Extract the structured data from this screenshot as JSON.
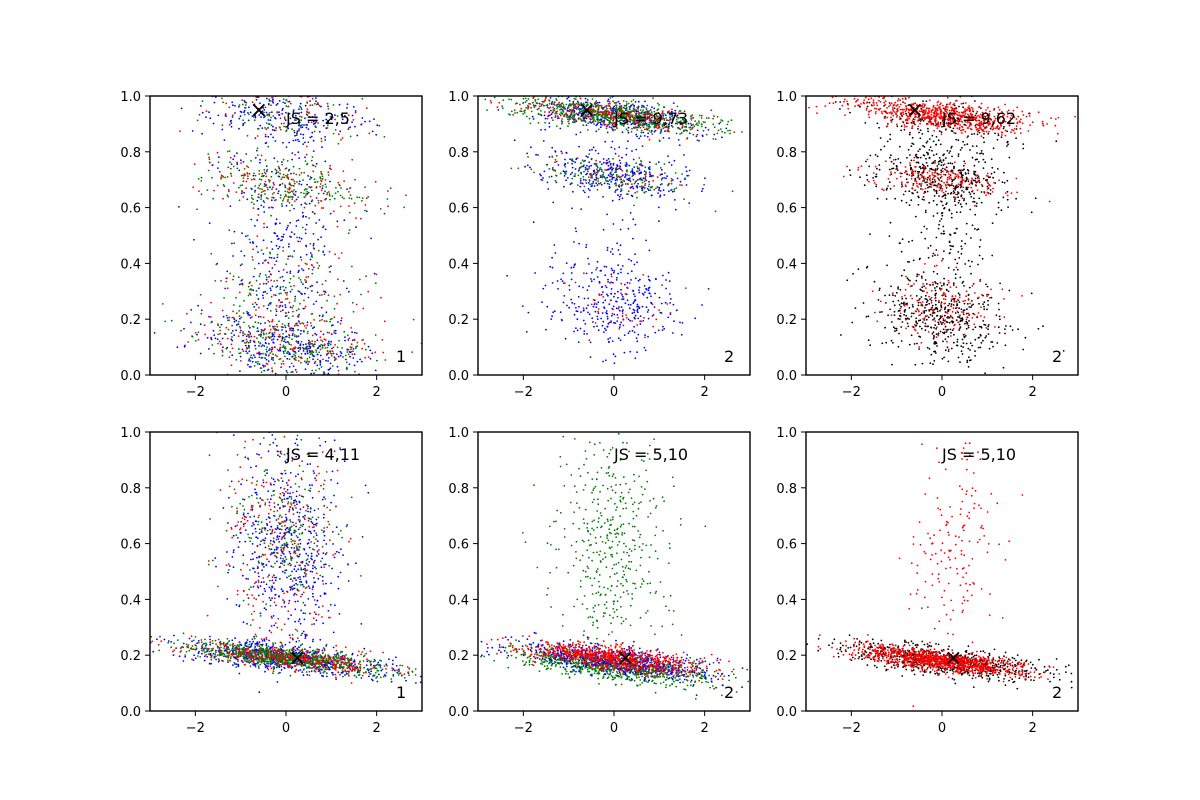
{
  "chart_data": [
    {
      "type": "scatter",
      "panel": "1",
      "x_range": [
        -3,
        3
      ],
      "ylim": [
        0,
        1
      ],
      "xticks": [
        "−2",
        "0",
        "2"
      ],
      "yticks": [
        "0.0",
        "0.2",
        "0.4",
        "0.6",
        "0.8",
        "1.0"
      ],
      "label_text": "JS = 2,5",
      "corner_number": "1",
      "marker": {
        "x": -0.6,
        "y": 0.95,
        "symbol": "×"
      },
      "series": [
        {
          "name": "blue",
          "color": "#0000ff",
          "count": 900,
          "clusters": [
            {
              "cx": 0.0,
              "cy": 0.1,
              "sx": 1.0,
              "sy": 0.06,
              "w": 0.3
            },
            {
              "cx": 0.0,
              "cy": 0.5,
              "sx": 0.7,
              "sy": 0.3,
              "w": 0.45
            },
            {
              "cx": 0.0,
              "cy": 0.93,
              "sx": 0.9,
              "sy": 0.05,
              "w": 0.25
            }
          ]
        },
        {
          "name": "green",
          "color": "#007f00",
          "count": 700,
          "clusters": [
            {
              "cx": 0.0,
              "cy": 0.1,
              "sx": 1.0,
              "sy": 0.05,
              "w": 0.35
            },
            {
              "cx": 0.0,
              "cy": 0.68,
              "sx": 0.9,
              "sy": 0.05,
              "w": 0.3
            },
            {
              "cx": 0.0,
              "cy": 0.3,
              "sx": 0.8,
              "sy": 0.1,
              "w": 0.2
            },
            {
              "cx": 0.0,
              "cy": 0.93,
              "sx": 0.9,
              "sy": 0.05,
              "w": 0.15
            }
          ]
        },
        {
          "name": "red",
          "color": "#ff0000",
          "count": 450,
          "clusters": [
            {
              "cx": 0.0,
              "cy": 0.12,
              "sx": 1.0,
              "sy": 0.06,
              "w": 0.35
            },
            {
              "cx": 0.0,
              "cy": 0.68,
              "sx": 0.9,
              "sy": 0.05,
              "w": 0.3
            },
            {
              "cx": 0.0,
              "cy": 0.3,
              "sx": 0.9,
              "sy": 0.1,
              "w": 0.2
            },
            {
              "cx": 0.0,
              "cy": 0.93,
              "sx": 0.9,
              "sy": 0.05,
              "w": 0.15
            }
          ]
        }
      ]
    },
    {
      "type": "scatter",
      "panel": "2",
      "x_range": [
        -3,
        3
      ],
      "ylim": [
        0,
        1
      ],
      "xticks": [
        "−2",
        "0",
        "2"
      ],
      "yticks": [
        "0.0",
        "0.2",
        "0.4",
        "0.6",
        "0.8",
        "1.0"
      ],
      "label_text": "JS = 9,73",
      "corner_number": "2",
      "marker": {
        "x": -0.6,
        "y": 0.95,
        "symbol": "×"
      },
      "series": [
        {
          "name": "blue",
          "color": "#0000ff",
          "count": 1100,
          "clusters": [
            {
              "cx": 0.0,
              "cy": 0.93,
              "sx": 1.0,
              "sy": 0.03,
              "w": 0.35
            },
            {
              "cx": 0.0,
              "cy": 0.72,
              "sx": 0.8,
              "sy": 0.04,
              "w": 0.3
            },
            {
              "cx": 0.0,
              "cy": 0.25,
              "sx": 0.7,
              "sy": 0.08,
              "w": 0.25
            },
            {
              "cx": 0.0,
              "cy": 0.5,
              "sx": 0.7,
              "sy": 0.25,
              "w": 0.1
            }
          ]
        },
        {
          "name": "green",
          "color": "#007f00",
          "count": 900,
          "clusters": [
            {
              "cx": 0.0,
              "cy": 0.93,
              "sx": 1.1,
              "sy": 0.025,
              "w": 0.8
            },
            {
              "cx": 0.0,
              "cy": 0.71,
              "sx": 0.9,
              "sy": 0.03,
              "w": 0.2
            }
          ]
        },
        {
          "name": "red",
          "color": "#ff0000",
          "count": 350,
          "clusters": [
            {
              "cx": 0.0,
              "cy": 0.93,
              "sx": 1.0,
              "sy": 0.025,
              "w": 0.7
            },
            {
              "cx": 0.0,
              "cy": 0.72,
              "sx": 0.8,
              "sy": 0.03,
              "w": 0.15
            },
            {
              "cx": 0.0,
              "cy": 0.25,
              "sx": 0.6,
              "sy": 0.07,
              "w": 0.15
            }
          ]
        }
      ]
    },
    {
      "type": "scatter",
      "panel": "3",
      "x_range": [
        -3,
        3
      ],
      "ylim": [
        0,
        1
      ],
      "xticks": [
        "−2",
        "0",
        "2"
      ],
      "yticks": [
        "0.0",
        "0.2",
        "0.4",
        "0.6",
        "0.8",
        "1.0"
      ],
      "label_text": "JS = 9,62",
      "corner_number": "2",
      "marker": {
        "x": -0.6,
        "y": 0.95,
        "symbol": "×"
      },
      "series": [
        {
          "name": "black",
          "color": "#000000",
          "count": 1200,
          "clusters": [
            {
              "cx": 0.0,
              "cy": 0.2,
              "sx": 0.8,
              "sy": 0.08,
              "w": 0.35
            },
            {
              "cx": 0.0,
              "cy": 0.72,
              "sx": 0.7,
              "sy": 0.06,
              "w": 0.3
            },
            {
              "cx": 0.0,
              "cy": 0.5,
              "sx": 0.6,
              "sy": 0.25,
              "w": 0.2
            },
            {
              "cx": 0.0,
              "cy": 0.9,
              "sx": 1.0,
              "sy": 0.04,
              "w": 0.15
            }
          ]
        },
        {
          "name": "red",
          "color": "#ff0000",
          "count": 1100,
          "clusters": [
            {
              "cx": 0.0,
              "cy": 0.93,
              "sx": 1.0,
              "sy": 0.025,
              "w": 0.65
            },
            {
              "cx": 0.0,
              "cy": 0.7,
              "sx": 0.8,
              "sy": 0.03,
              "w": 0.2
            },
            {
              "cx": 0.0,
              "cy": 0.25,
              "sx": 0.6,
              "sy": 0.07,
              "w": 0.15
            }
          ]
        }
      ]
    },
    {
      "type": "scatter",
      "panel": "4",
      "x_range": [
        -3,
        3
      ],
      "ylim": [
        0,
        1
      ],
      "xticks": [
        "−2",
        "0",
        "2"
      ],
      "yticks": [
        "0.0",
        "0.2",
        "0.4",
        "0.6",
        "0.8",
        "1.0"
      ],
      "label_text": "JS = 4,11",
      "corner_number": "1",
      "marker": {
        "x": 0.25,
        "y": 0.19,
        "symbol": "×"
      },
      "series": [
        {
          "name": "blue",
          "color": "#0000ff",
          "count": 1200,
          "clusters": [
            {
              "cx": 0.0,
              "cy": 0.19,
              "sx": 1.1,
              "sy": 0.025,
              "w": 0.55
            },
            {
              "cx": 0.0,
              "cy": 0.6,
              "sx": 0.6,
              "sy": 0.2,
              "w": 0.45
            }
          ]
        },
        {
          "name": "green",
          "color": "#007f00",
          "count": 1100,
          "clusters": [
            {
              "cx": 0.0,
              "cy": 0.19,
              "sx": 1.1,
              "sy": 0.02,
              "w": 0.8
            },
            {
              "cx": 0.0,
              "cy": 0.65,
              "sx": 0.6,
              "sy": 0.15,
              "w": 0.2
            }
          ]
        },
        {
          "name": "red",
          "color": "#ff0000",
          "count": 600,
          "clusters": [
            {
              "cx": 0.0,
              "cy": 0.19,
              "sx": 1.1,
              "sy": 0.02,
              "w": 0.6
            },
            {
              "cx": 0.0,
              "cy": 0.6,
              "sx": 0.7,
              "sy": 0.2,
              "w": 0.4
            }
          ]
        }
      ]
    },
    {
      "type": "scatter",
      "panel": "5",
      "x_range": [
        -3,
        3
      ],
      "ylim": [
        0,
        1
      ],
      "xticks": [
        "−2",
        "0",
        "2"
      ],
      "yticks": [
        "0.0",
        "0.2",
        "0.4",
        "0.6",
        "0.8",
        "1.0"
      ],
      "label_text": "JS = 5,10",
      "corner_number": "2",
      "marker": {
        "x": 0.25,
        "y": 0.19,
        "symbol": "×"
      },
      "series": [
        {
          "name": "green",
          "color": "#007f00",
          "count": 1300,
          "clusters": [
            {
              "cx": 0.0,
              "cy": 0.16,
              "sx": 1.1,
              "sy": 0.025,
              "w": 0.65
            },
            {
              "cx": 0.0,
              "cy": 0.6,
              "sx": 0.6,
              "sy": 0.2,
              "w": 0.35
            }
          ]
        },
        {
          "name": "blue",
          "color": "#0000ff",
          "count": 600,
          "clusters": [
            {
              "cx": 0.0,
              "cy": 0.18,
              "sx": 1.1,
              "sy": 0.025,
              "w": 1.0
            }
          ]
        },
        {
          "name": "red",
          "color": "#ff0000",
          "count": 800,
          "clusters": [
            {
              "cx": 0.0,
              "cy": 0.19,
              "sx": 1.0,
              "sy": 0.02,
              "w": 1.0
            }
          ]
        }
      ]
    },
    {
      "type": "scatter",
      "panel": "6",
      "x_range": [
        -3,
        3
      ],
      "ylim": [
        0,
        1
      ],
      "xticks": [
        "−2",
        "0",
        "2"
      ],
      "yticks": [
        "0.0",
        "0.2",
        "0.4",
        "0.6",
        "0.8",
        "1.0"
      ],
      "label_text": "JS = 5,10",
      "corner_number": "2",
      "marker": {
        "x": 0.25,
        "y": 0.19,
        "symbol": "×"
      },
      "series": [
        {
          "name": "black",
          "color": "#000000",
          "count": 700,
          "clusters": [
            {
              "cx": 0.0,
              "cy": 0.18,
              "sx": 1.1,
              "sy": 0.025,
              "w": 1.0
            }
          ]
        },
        {
          "name": "red",
          "color": "#ff0000",
          "count": 1200,
          "clusters": [
            {
              "cx": 0.0,
              "cy": 0.18,
              "sx": 0.9,
              "sy": 0.018,
              "w": 0.85
            },
            {
              "cx": 0.3,
              "cy": 0.6,
              "sx": 0.5,
              "sy": 0.2,
              "w": 0.15
            }
          ]
        }
      ]
    }
  ]
}
